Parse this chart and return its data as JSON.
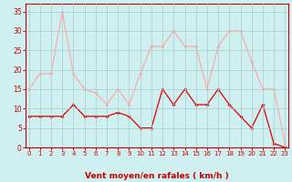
{
  "x": [
    0,
    1,
    2,
    3,
    4,
    5,
    6,
    7,
    8,
    9,
    10,
    11,
    12,
    13,
    14,
    15,
    16,
    17,
    18,
    19,
    20,
    21,
    22,
    23
  ],
  "rafales": [
    15,
    19,
    19,
    35,
    19,
    15,
    14,
    11,
    15,
    11,
    19,
    26,
    26,
    30,
    26,
    26,
    15,
    26,
    30,
    30,
    22,
    15,
    15,
    1
  ],
  "moyen": [
    8,
    8,
    8,
    8,
    11,
    8,
    8,
    8,
    9,
    8,
    5,
    5,
    15,
    11,
    15,
    11,
    11,
    15,
    11,
    8,
    5,
    11,
    1,
    0
  ],
  "color_rafales": "#ffaaaa",
  "color_moyen": "#dd0000",
  "bg_color": "#cff0f0",
  "grid_color": "#aacccc",
  "xlabel": "Vent moyen/en rafales ( km/h )",
  "xlabel_color": "#cc0000",
  "axis_color": "#cc0000",
  "tick_color": "#cc0000",
  "ylabel_ticks": [
    0,
    5,
    10,
    15,
    20,
    25,
    30,
    35
  ],
  "ylim": [
    0,
    37
  ],
  "xlim": [
    -0.3,
    23.3
  ]
}
